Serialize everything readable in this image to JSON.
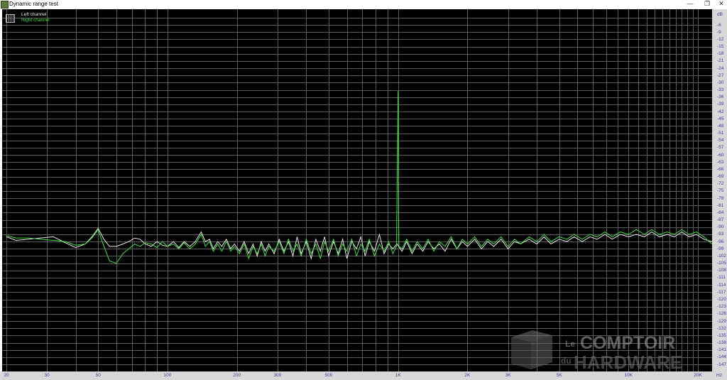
{
  "window": {
    "title": "Dynamic range test",
    "minimize": "—",
    "restore": "❐",
    "close": "✕"
  },
  "legend": [
    {
      "label": "Left channel",
      "color": "#e8e8e8"
    },
    {
      "label": "Right channel",
      "color": "#3ee03e"
    }
  ],
  "watermark": {
    "line1a": "Le",
    "line1b": "COMPTOIR",
    "line2a": "du",
    "line2b": "HARDWARE"
  },
  "colors": {
    "background": "#000000",
    "grid": "#5c5c5c",
    "axis_panel": "#d8d8d8",
    "tick_label": "#3a3aa0"
  },
  "chart_data": {
    "type": "line",
    "xscale": "log",
    "xlim": [
      20,
      23000
    ],
    "ylim": [
      -150,
      0
    ],
    "grid": true,
    "legend_position": "top-left",
    "y_unit": "dB",
    "x_unit": "Hz",
    "x_ticks": [
      {
        "v": 20,
        "t": "20"
      },
      {
        "v": 30,
        "t": "30"
      },
      {
        "v": 50,
        "t": "50"
      },
      {
        "v": 100,
        "t": "100"
      },
      {
        "v": 200,
        "t": "200"
      },
      {
        "v": 300,
        "t": "300"
      },
      {
        "v": 500,
        "t": "500"
      },
      {
        "v": 1000,
        "t": "1K"
      },
      {
        "v": 2000,
        "t": "2K"
      },
      {
        "v": 3000,
        "t": "3K"
      },
      {
        "v": 5000,
        "t": "5K"
      },
      {
        "v": 10000,
        "t": "10K"
      },
      {
        "v": 20000,
        "t": "20K"
      }
    ],
    "y_ticks": [
      -6,
      -9,
      -12,
      -15,
      -18,
      -21,
      -24,
      -27,
      -30,
      -33,
      -36,
      -39,
      -42,
      -45,
      -48,
      -51,
      -54,
      -57,
      -60,
      -63,
      -66,
      -69,
      -72,
      -75,
      -78,
      -81,
      -84,
      -87,
      -90,
      -93,
      -96,
      -99,
      -102,
      -105,
      -108,
      -111,
      -114,
      -117,
      -120,
      -123,
      -126,
      -129,
      -132,
      -135,
      -138,
      -141,
      -144,
      -147
    ],
    "series": [
      {
        "name": "Left channel",
        "points": [
          [
            20,
            -94
          ],
          [
            22,
            -95.5
          ],
          [
            25,
            -95
          ],
          [
            28,
            -94.5
          ],
          [
            32,
            -94
          ],
          [
            36,
            -96.5
          ],
          [
            40,
            -98.5
          ],
          [
            44,
            -97
          ],
          [
            47,
            -94
          ],
          [
            50,
            -90.5
          ],
          [
            53,
            -95
          ],
          [
            56,
            -98
          ],
          [
            60,
            -98
          ],
          [
            64,
            -97
          ],
          [
            68,
            -96
          ],
          [
            72,
            -94.5
          ],
          [
            76,
            -95
          ],
          [
            80,
            -97
          ],
          [
            85,
            -98
          ],
          [
            90,
            -96
          ],
          [
            95,
            -97.5
          ],
          [
            100,
            -98
          ],
          [
            106,
            -96
          ],
          [
            112,
            -98.5
          ],
          [
            118,
            -96
          ],
          [
            125,
            -98
          ],
          [
            132,
            -96
          ],
          [
            140,
            -92
          ],
          [
            146,
            -96
          ],
          [
            152,
            -95
          ],
          [
            158,
            -99
          ],
          [
            165,
            -96
          ],
          [
            172,
            -98
          ],
          [
            180,
            -95
          ],
          [
            188,
            -99
          ],
          [
            195,
            -97
          ],
          [
            205,
            -100
          ],
          [
            215,
            -96
          ],
          [
            225,
            -101
          ],
          [
            235,
            -97
          ],
          [
            245,
            -102
          ],
          [
            255,
            -96
          ],
          [
            265,
            -100
          ],
          [
            275,
            -97
          ],
          [
            290,
            -101
          ],
          [
            305,
            -95
          ],
          [
            320,
            -100
          ],
          [
            335,
            -96
          ],
          [
            350,
            -102
          ],
          [
            365,
            -94
          ],
          [
            380,
            -101
          ],
          [
            400,
            -96
          ],
          [
            420,
            -103
          ],
          [
            440,
            -95
          ],
          [
            460,
            -100
          ],
          [
            480,
            -94
          ],
          [
            500,
            -102
          ],
          [
            525,
            -96
          ],
          [
            550,
            -101
          ],
          [
            575,
            -95
          ],
          [
            600,
            -103
          ],
          [
            630,
            -96
          ],
          [
            660,
            -99
          ],
          [
            690,
            -94
          ],
          [
            720,
            -102
          ],
          [
            750,
            -96
          ],
          [
            790,
            -100
          ],
          [
            830,
            -93
          ],
          [
            870,
            -101
          ],
          [
            910,
            -97
          ],
          [
            950,
            -99
          ],
          [
            990,
            -97
          ],
          [
            1040,
            -100
          ],
          [
            1090,
            -96
          ],
          [
            1150,
            -101
          ],
          [
            1210,
            -97
          ],
          [
            1280,
            -100
          ],
          [
            1350,
            -96
          ],
          [
            1430,
            -99
          ],
          [
            1510,
            -97
          ],
          [
            1600,
            -100
          ],
          [
            1700,
            -95
          ],
          [
            1800,
            -99
          ],
          [
            1900,
            -96
          ],
          [
            2000,
            -98
          ],
          [
            2150,
            -95
          ],
          [
            2300,
            -99
          ],
          [
            2450,
            -96
          ],
          [
            2600,
            -98
          ],
          [
            2800,
            -95
          ],
          [
            3000,
            -99
          ],
          [
            3200,
            -96
          ],
          [
            3400,
            -97
          ],
          [
            3700,
            -95
          ],
          [
            4000,
            -97
          ],
          [
            4300,
            -94
          ],
          [
            4600,
            -97
          ],
          [
            5000,
            -95
          ],
          [
            5400,
            -96
          ],
          [
            5800,
            -94
          ],
          [
            6300,
            -96
          ],
          [
            6800,
            -94
          ],
          [
            7300,
            -95
          ],
          [
            7900,
            -93
          ],
          [
            8500,
            -95
          ],
          [
            9200,
            -93
          ],
          [
            10000,
            -94
          ],
          [
            10800,
            -93
          ],
          [
            11700,
            -94
          ],
          [
            12600,
            -92
          ],
          [
            13600,
            -94
          ],
          [
            14700,
            -93
          ],
          [
            15800,
            -94
          ],
          [
            17000,
            -92
          ],
          [
            18300,
            -94
          ],
          [
            19700,
            -93
          ],
          [
            21200,
            -95
          ],
          [
            23000,
            -96
          ]
        ]
      },
      {
        "name": "Right channel",
        "points": [
          [
            20,
            -93.5
          ],
          [
            22,
            -94.5
          ],
          [
            25,
            -94.5
          ],
          [
            28,
            -95
          ],
          [
            32,
            -95.5
          ],
          [
            36,
            -96
          ],
          [
            40,
            -97.5
          ],
          [
            44,
            -97
          ],
          [
            47,
            -94.5
          ],
          [
            50,
            -91
          ],
          [
            53,
            -98
          ],
          [
            56,
            -104
          ],
          [
            60,
            -105
          ],
          [
            64,
            -101
          ],
          [
            68,
            -99
          ],
          [
            72,
            -97
          ],
          [
            76,
            -98
          ],
          [
            80,
            -96.5
          ],
          [
            85,
            -97
          ],
          [
            90,
            -98.5
          ],
          [
            95,
            -96
          ],
          [
            100,
            -98
          ],
          [
            106,
            -97
          ],
          [
            112,
            -99
          ],
          [
            118,
            -96.5
          ],
          [
            125,
            -99
          ],
          [
            132,
            -97
          ],
          [
            140,
            -93
          ],
          [
            146,
            -98
          ],
          [
            152,
            -96
          ],
          [
            158,
            -100
          ],
          [
            165,
            -97
          ],
          [
            172,
            -100
          ],
          [
            180,
            -96
          ],
          [
            188,
            -100
          ],
          [
            195,
            -98
          ],
          [
            205,
            -101
          ],
          [
            215,
            -97
          ],
          [
            225,
            -103
          ],
          [
            235,
            -98
          ],
          [
            245,
            -101
          ],
          [
            255,
            -97
          ],
          [
            265,
            -102
          ],
          [
            275,
            -98
          ],
          [
            290,
            -100
          ],
          [
            305,
            -96
          ],
          [
            320,
            -101
          ],
          [
            335,
            -95
          ],
          [
            350,
            -100
          ],
          [
            365,
            -97
          ],
          [
            380,
            -102
          ],
          [
            400,
            -95
          ],
          [
            420,
            -101
          ],
          [
            440,
            -97
          ],
          [
            460,
            -103
          ],
          [
            480,
            -96
          ],
          [
            500,
            -100
          ],
          [
            525,
            -95
          ],
          [
            550,
            -102
          ],
          [
            575,
            -97
          ],
          [
            600,
            -100
          ],
          [
            630,
            -95
          ],
          [
            660,
            -102
          ],
          [
            690,
            -97
          ],
          [
            720,
            -100
          ],
          [
            750,
            -95
          ],
          [
            790,
            -102
          ],
          [
            830,
            -97
          ],
          [
            870,
            -100
          ],
          [
            910,
            -96
          ],
          [
            950,
            -101
          ],
          [
            985,
            -98
          ],
          [
            995,
            -60
          ],
          [
            1000,
            -33.5
          ],
          [
            1003,
            -60
          ],
          [
            1008,
            -98
          ],
          [
            1040,
            -99
          ],
          [
            1090,
            -95
          ],
          [
            1150,
            -100
          ],
          [
            1210,
            -96
          ],
          [
            1280,
            -99
          ],
          [
            1350,
            -95
          ],
          [
            1430,
            -100
          ],
          [
            1510,
            -96
          ],
          [
            1600,
            -98
          ],
          [
            1700,
            -94
          ],
          [
            1800,
            -99
          ],
          [
            1900,
            -95
          ],
          [
            2000,
            -97
          ],
          [
            2150,
            -94
          ],
          [
            2300,
            -98
          ],
          [
            2450,
            -95
          ],
          [
            2600,
            -97
          ],
          [
            2800,
            -94
          ],
          [
            3000,
            -98
          ],
          [
            3200,
            -95
          ],
          [
            3400,
            -97
          ],
          [
            3700,
            -94
          ],
          [
            4000,
            -96
          ],
          [
            4300,
            -93
          ],
          [
            4600,
            -96
          ],
          [
            5000,
            -94
          ],
          [
            5400,
            -95
          ],
          [
            5800,
            -93
          ],
          [
            6300,
            -95
          ],
          [
            6800,
            -93
          ],
          [
            7300,
            -94
          ],
          [
            7900,
            -92
          ],
          [
            8500,
            -94
          ],
          [
            9200,
            -92
          ],
          [
            10000,
            -93
          ],
          [
            10800,
            -91
          ],
          [
            11700,
            -93
          ],
          [
            12600,
            -91
          ],
          [
            13600,
            -93
          ],
          [
            14700,
            -92
          ],
          [
            15800,
            -93
          ],
          [
            17000,
            -91
          ],
          [
            18300,
            -93
          ],
          [
            19700,
            -92
          ],
          [
            21200,
            -94
          ],
          [
            23000,
            -97
          ]
        ]
      }
    ]
  }
}
